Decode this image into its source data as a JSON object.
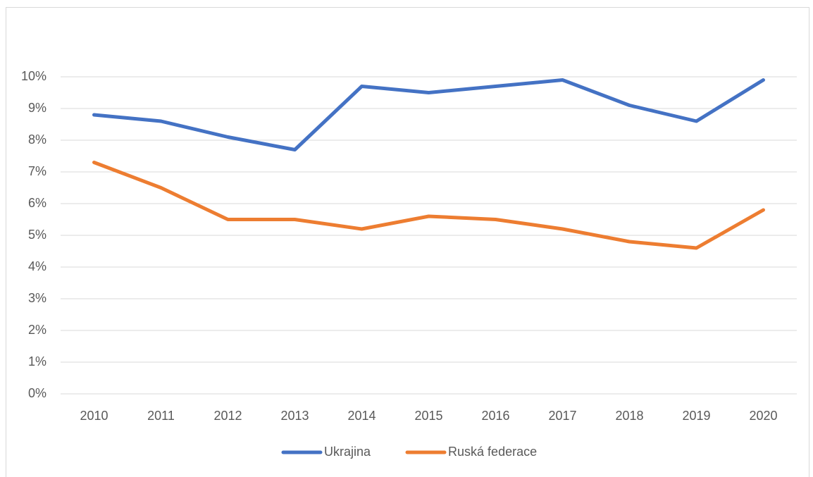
{
  "chart_data": {
    "type": "line",
    "categories": [
      "2010",
      "2011",
      "2012",
      "2013",
      "2014",
      "2015",
      "2016",
      "2017",
      "2018",
      "2019",
      "2020"
    ],
    "series": [
      {
        "name": "Ukrajina",
        "color": "#4472c4",
        "values": [
          8.8,
          8.6,
          8.1,
          7.7,
          9.7,
          9.5,
          9.7,
          9.9,
          9.1,
          8.6,
          9.9
        ]
      },
      {
        "name": "Ruská federace",
        "color": "#ed7d31",
        "values": [
          7.3,
          6.5,
          5.5,
          5.5,
          5.2,
          5.6,
          5.5,
          5.2,
          4.8,
          4.6,
          5.8
        ]
      }
    ],
    "ylim": [
      0,
      10
    ],
    "yticks": [
      {
        "value": 0,
        "label": "0%"
      },
      {
        "value": 1,
        "label": "1%"
      },
      {
        "value": 2,
        "label": "2%"
      },
      {
        "value": 3,
        "label": "3%"
      },
      {
        "value": 4,
        "label": "4%"
      },
      {
        "value": 5,
        "label": "5%"
      },
      {
        "value": 6,
        "label": "6%"
      },
      {
        "value": 7,
        "label": "7%"
      },
      {
        "value": 8,
        "label": "8%"
      },
      {
        "value": 9,
        "label": "9%"
      },
      {
        "value": 10,
        "label": "10%"
      }
    ],
    "grid": true,
    "legend": "bottom"
  }
}
